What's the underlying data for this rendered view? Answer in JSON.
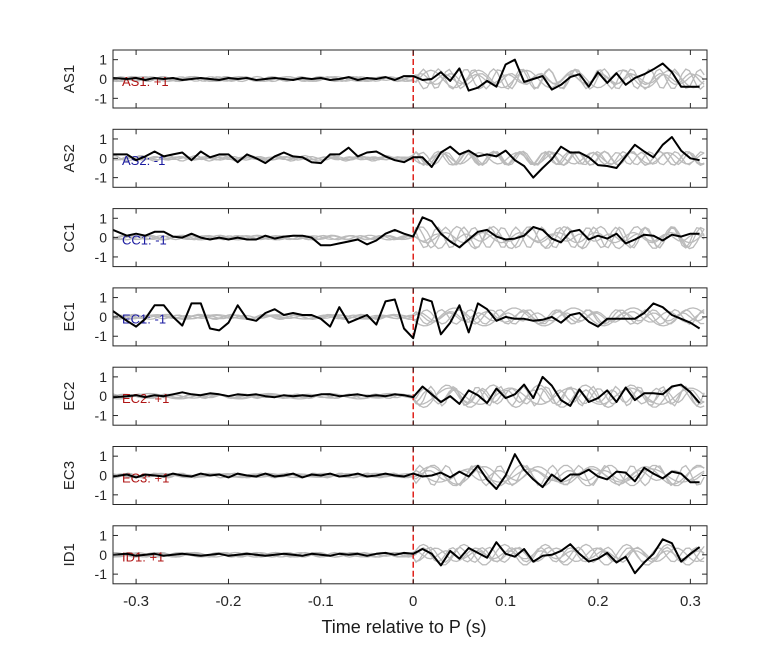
{
  "chart_data": {
    "type": "line",
    "xlabel": "Time relative to P (s)",
    "xlim": [
      -0.325,
      0.318
    ],
    "ylim": [
      -1.5,
      1.5
    ],
    "x_ticks": [
      "-0.3",
      "-0.2",
      "-0.1",
      "0",
      "0.1",
      "0.2",
      "0.3"
    ],
    "y_ticks": [
      "1",
      "0",
      "-1"
    ],
    "marker_line": {
      "x": 0,
      "color": "#e0201a"
    },
    "colors": {
      "trace": "#000000",
      "background": "#bbbbbb",
      "polarity_positive": "#b01515",
      "polarity_negative": "#1a1aa0"
    },
    "panels": [
      {
        "station": "AS1",
        "annotation": "AS1: +1",
        "polarity": "positive",
        "x": [
          -0.325,
          -0.31,
          -0.3,
          -0.29,
          -0.28,
          -0.27,
          -0.26,
          -0.25,
          -0.24,
          -0.23,
          -0.22,
          -0.21,
          -0.2,
          -0.19,
          -0.18,
          -0.17,
          -0.16,
          -0.15,
          -0.14,
          -0.13,
          -0.12,
          -0.11,
          -0.1,
          -0.09,
          -0.08,
          -0.07,
          -0.06,
          -0.05,
          -0.04,
          -0.03,
          -0.02,
          -0.01,
          0,
          0.01,
          0.02,
          0.03,
          0.04,
          0.05,
          0.06,
          0.07,
          0.08,
          0.09,
          0.1,
          0.11,
          0.12,
          0.13,
          0.14,
          0.15,
          0.16,
          0.17,
          0.18,
          0.19,
          0.2,
          0.21,
          0.22,
          0.23,
          0.24,
          0.25,
          0.26,
          0.27,
          0.28,
          0.29,
          0.3,
          0.31
        ],
        "y": [
          0.05,
          0,
          0.05,
          -0.05,
          0.05,
          0,
          0.05,
          -0.05,
          0,
          0.05,
          0,
          -0.05,
          0.05,
          0,
          0.05,
          -0.05,
          0,
          0.05,
          0,
          -0.05,
          0.05,
          0,
          0.05,
          -0.05,
          0,
          0.1,
          -0.05,
          0.05,
          0,
          0.1,
          -0.05,
          0.15,
          0.15,
          -0.05,
          0,
          0.35,
          -0.1,
          0.55,
          -0.6,
          -0.45,
          -0.1,
          -0.4,
          0.75,
          1.0,
          -0.15,
          0,
          0.15,
          -0.55,
          -0.3,
          0.1,
          0.25,
          -0.4,
          0.35,
          -0.2,
          0.3,
          -0.3,
          0.05,
          0.25,
          0.5,
          0.8,
          0.35,
          -0.4,
          -0.4,
          -0.4
        ]
      },
      {
        "station": "AS2",
        "annotation": "AS2: -1",
        "polarity": "negative",
        "x": [
          -0.325,
          -0.31,
          -0.3,
          -0.29,
          -0.28,
          -0.27,
          -0.26,
          -0.25,
          -0.24,
          -0.23,
          -0.22,
          -0.21,
          -0.2,
          -0.19,
          -0.18,
          -0.17,
          -0.16,
          -0.15,
          -0.14,
          -0.13,
          -0.12,
          -0.11,
          -0.1,
          -0.09,
          -0.08,
          -0.07,
          -0.06,
          -0.05,
          -0.04,
          -0.03,
          -0.02,
          -0.01,
          0,
          0.01,
          0.02,
          0.03,
          0.04,
          0.05,
          0.06,
          0.07,
          0.08,
          0.09,
          0.1,
          0.11,
          0.12,
          0.13,
          0.14,
          0.15,
          0.16,
          0.17,
          0.18,
          0.19,
          0.2,
          0.21,
          0.22,
          0.23,
          0.24,
          0.25,
          0.26,
          0.27,
          0.28,
          0.29,
          0.3,
          0.31
        ],
        "y": [
          0.2,
          0.2,
          -0.1,
          0.1,
          0.35,
          0.1,
          0.2,
          0.3,
          -0.1,
          0.35,
          0.05,
          0.2,
          0.2,
          -0.2,
          0.2,
          0,
          -0.25,
          0.1,
          0.3,
          0.1,
          0.05,
          -0.2,
          -0.25,
          0.2,
          0.2,
          0.55,
          0.1,
          0.3,
          0.35,
          0.1,
          -0.1,
          -0.2,
          0.05,
          0.05,
          -0.45,
          0.3,
          0.6,
          0.2,
          0.4,
          0.1,
          0.2,
          0.1,
          0.4,
          -0.1,
          -0.4,
          -1.0,
          -0.5,
          -0.05,
          0.6,
          0.3,
          0.3,
          0.05,
          -0.35,
          -0.4,
          -0.5,
          0.1,
          0.7,
          0.35,
          0.05,
          0.7,
          1.1,
          0.4,
          0,
          -0.1
        ]
      },
      {
        "station": "CC1",
        "annotation": "CC1: -1",
        "polarity": "negative",
        "x": [
          -0.325,
          -0.31,
          -0.3,
          -0.29,
          -0.28,
          -0.27,
          -0.26,
          -0.25,
          -0.24,
          -0.23,
          -0.22,
          -0.21,
          -0.2,
          -0.19,
          -0.18,
          -0.17,
          -0.16,
          -0.15,
          -0.14,
          -0.13,
          -0.12,
          -0.11,
          -0.1,
          -0.09,
          -0.08,
          -0.07,
          -0.06,
          -0.05,
          -0.04,
          -0.03,
          -0.02,
          -0.01,
          0,
          0.01,
          0.02,
          0.03,
          0.04,
          0.05,
          0.06,
          0.07,
          0.08,
          0.09,
          0.1,
          0.11,
          0.12,
          0.13,
          0.14,
          0.15,
          0.16,
          0.17,
          0.18,
          0.19,
          0.2,
          0.21,
          0.22,
          0.23,
          0.24,
          0.25,
          0.26,
          0.27,
          0.28,
          0.29,
          0.3,
          0.31
        ],
        "y": [
          0.4,
          0.1,
          0.2,
          0.1,
          0.3,
          0.3,
          0.05,
          0,
          0.2,
          0,
          -0.1,
          0,
          -0.1,
          0,
          -0.1,
          -0.1,
          0.1,
          -0.05,
          0.05,
          0.1,
          0.1,
          0,
          -0.4,
          -0.4,
          -0.3,
          -0.2,
          -0.1,
          -0.35,
          -0.15,
          0.2,
          0.4,
          0.2,
          0.05,
          1.05,
          0.85,
          0.2,
          -0.2,
          -0.5,
          -0.1,
          0.3,
          0.4,
          0.05,
          -0.1,
          -0.05,
          0.1,
          0.55,
          0.4,
          -0.05,
          -0.25,
          0.3,
          0.4,
          -0.1,
          0.1,
          -0.05,
          0.2,
          -0.3,
          -0.1,
          0.15,
          0.1,
          -0.15,
          0.15,
          0.05,
          0.2,
          0.2
        ]
      },
      {
        "station": "EC1",
        "annotation": "EC1: -1",
        "polarity": "negative",
        "x": [
          -0.325,
          -0.31,
          -0.3,
          -0.29,
          -0.28,
          -0.27,
          -0.26,
          -0.25,
          -0.24,
          -0.23,
          -0.22,
          -0.21,
          -0.2,
          -0.19,
          -0.18,
          -0.17,
          -0.16,
          -0.15,
          -0.14,
          -0.13,
          -0.12,
          -0.11,
          -0.1,
          -0.09,
          -0.08,
          -0.07,
          -0.06,
          -0.05,
          -0.04,
          -0.03,
          -0.02,
          -0.01,
          0,
          0.01,
          0.02,
          0.03,
          0.04,
          0.05,
          0.06,
          0.07,
          0.08,
          0.09,
          0.1,
          0.11,
          0.12,
          0.13,
          0.14,
          0.15,
          0.16,
          0.17,
          0.18,
          0.19,
          0.2,
          0.21,
          0.22,
          0.23,
          0.24,
          0.25,
          0.26,
          0.27,
          0.28,
          0.29,
          0.3,
          0.31
        ],
        "y": [
          0.3,
          -0.2,
          -0.5,
          -0.1,
          0.6,
          0.6,
          0,
          -0.45,
          0.7,
          0.7,
          -0.6,
          -0.7,
          -0.3,
          0.6,
          -0.1,
          -0.2,
          0.2,
          0.4,
          0.1,
          0.2,
          0.1,
          0.1,
          -0.1,
          -0.5,
          0.5,
          -0.3,
          -0.1,
          0.1,
          -0.4,
          0.8,
          0.9,
          -0.6,
          -1.1,
          0.95,
          0.8,
          -0.9,
          -0.3,
          0.6,
          -0.8,
          0.7,
          0.4,
          -0.2,
          0,
          -0.1,
          -0.1,
          -0.2,
          -0.15,
          0,
          -0.3,
          0.1,
          0.2,
          -0.25,
          -0.5,
          -0.1,
          -0.1,
          -0.1,
          -0.1,
          0.2,
          0.7,
          0.5,
          0.1,
          -0.1,
          -0.3,
          -0.6
        ]
      },
      {
        "station": "EC2",
        "annotation": "EC2: +1",
        "polarity": "positive",
        "x": [
          -0.325,
          -0.31,
          -0.3,
          -0.29,
          -0.28,
          -0.27,
          -0.26,
          -0.25,
          -0.24,
          -0.23,
          -0.22,
          -0.21,
          -0.2,
          -0.19,
          -0.18,
          -0.17,
          -0.16,
          -0.15,
          -0.14,
          -0.13,
          -0.12,
          -0.11,
          -0.1,
          -0.09,
          -0.08,
          -0.07,
          -0.06,
          -0.05,
          -0.04,
          -0.03,
          -0.02,
          -0.01,
          0,
          0.01,
          0.02,
          0.03,
          0.04,
          0.05,
          0.06,
          0.07,
          0.08,
          0.09,
          0.1,
          0.11,
          0.12,
          0.13,
          0.14,
          0.15,
          0.16,
          0.17,
          0.18,
          0.19,
          0.2,
          0.21,
          0.22,
          0.23,
          0.24,
          0.25,
          0.26,
          0.27,
          0.28,
          0.29,
          0.3,
          0.31
        ],
        "y": [
          -0.05,
          0,
          0.05,
          -0.05,
          0.05,
          0,
          0.1,
          0.2,
          0.1,
          0.05,
          0.15,
          0.1,
          0,
          0.1,
          0.05,
          0.1,
          0,
          -0.05,
          0.05,
          0,
          0.05,
          0,
          0.1,
          0.1,
          0,
          0.05,
          0.1,
          0,
          0.05,
          0,
          0.1,
          0.05,
          -0.05,
          0.5,
          0.1,
          -0.3,
          0,
          -0.4,
          0.3,
          0.05,
          -0.35,
          0.4,
          -0.1,
          0.1,
          0.6,
          -0.1,
          1.0,
          0.55,
          -0.2,
          -0.5,
          0.35,
          -0.3,
          -0.1,
          0.3,
          -0.3,
          0.45,
          -0.2,
          0.15,
          0.15,
          0.1,
          0.5,
          0.6,
          0.2,
          -0.35
        ]
      },
      {
        "station": "EC3",
        "annotation": "EC3: +1",
        "polarity": "positive",
        "x": [
          -0.325,
          -0.31,
          -0.3,
          -0.29,
          -0.28,
          -0.27,
          -0.26,
          -0.25,
          -0.24,
          -0.23,
          -0.22,
          -0.21,
          -0.2,
          -0.19,
          -0.18,
          -0.17,
          -0.16,
          -0.15,
          -0.14,
          -0.13,
          -0.12,
          -0.11,
          -0.1,
          -0.09,
          -0.08,
          -0.07,
          -0.06,
          -0.05,
          -0.04,
          -0.03,
          -0.02,
          -0.01,
          0,
          0.01,
          0.02,
          0.03,
          0.04,
          0.05,
          0.06,
          0.07,
          0.08,
          0.09,
          0.1,
          0.11,
          0.12,
          0.13,
          0.14,
          0.15,
          0.16,
          0.17,
          0.18,
          0.19,
          0.2,
          0.21,
          0.22,
          0.23,
          0.24,
          0.25,
          0.26,
          0.27,
          0.28,
          0.29,
          0.3,
          0.31
        ],
        "y": [
          -0.05,
          0.05,
          -0.1,
          0.05,
          0,
          -0.05,
          0.1,
          0,
          -0.05,
          0.1,
          0,
          0.05,
          -0.1,
          0.1,
          0,
          -0.05,
          0.1,
          -0.05,
          0,
          0.1,
          -0.1,
          0.05,
          0,
          0.1,
          -0.05,
          0,
          0.1,
          -0.05,
          0,
          0.1,
          0,
          -0.05,
          0.1,
          -0.05,
          0,
          0.15,
          -0.1,
          0.2,
          -0.05,
          0.5,
          -0.2,
          -0.7,
          0,
          1.1,
          0.3,
          -0.2,
          -0.6,
          0.05,
          -0.3,
          0.05,
          0.05,
          0.3,
          -0.05,
          -0.2,
          0.2,
          0.15,
          -0.3,
          0.4,
          0.1,
          -0.15,
          0.2,
          0.1,
          -0.35,
          -0.35
        ]
      },
      {
        "station": "ID1",
        "annotation": "ID1: +1",
        "polarity": "positive",
        "x": [
          -0.325,
          -0.31,
          -0.3,
          -0.29,
          -0.28,
          -0.27,
          -0.26,
          -0.25,
          -0.24,
          -0.23,
          -0.22,
          -0.21,
          -0.2,
          -0.19,
          -0.18,
          -0.17,
          -0.16,
          -0.15,
          -0.14,
          -0.13,
          -0.12,
          -0.11,
          -0.1,
          -0.09,
          -0.08,
          -0.07,
          -0.06,
          -0.05,
          -0.04,
          -0.03,
          -0.02,
          -0.01,
          0,
          0.01,
          0.02,
          0.03,
          0.04,
          0.05,
          0.06,
          0.07,
          0.08,
          0.09,
          0.1,
          0.11,
          0.12,
          0.13,
          0.14,
          0.15,
          0.16,
          0.17,
          0.18,
          0.19,
          0.2,
          0.21,
          0.22,
          0.23,
          0.24,
          0.25,
          0.26,
          0.27,
          0.28,
          0.29,
          0.3,
          0.31
        ],
        "y": [
          0,
          0.05,
          -0.05,
          0,
          0.05,
          -0.05,
          0,
          0.05,
          0,
          -0.05,
          0,
          0.05,
          -0.05,
          0,
          0.05,
          0,
          -0.05,
          0,
          0.05,
          0,
          -0.05,
          0.05,
          0,
          -0.05,
          0.05,
          0,
          0.05,
          -0.05,
          0.05,
          0.1,
          0,
          0.1,
          0.05,
          0.3,
          0.05,
          -0.55,
          0.2,
          -0.2,
          0.35,
          0.1,
          -0.15,
          0.65,
          0.05,
          -0.1,
          0.3,
          -0.35,
          -0.05,
          0,
          0.2,
          0.55,
          0.05,
          -0.35,
          -0.2,
          0.1,
          -0.4,
          -0.1,
          -0.95,
          -0.4,
          0.05,
          0.8,
          0.6,
          -0.35,
          0.05,
          0.4
        ]
      }
    ]
  }
}
